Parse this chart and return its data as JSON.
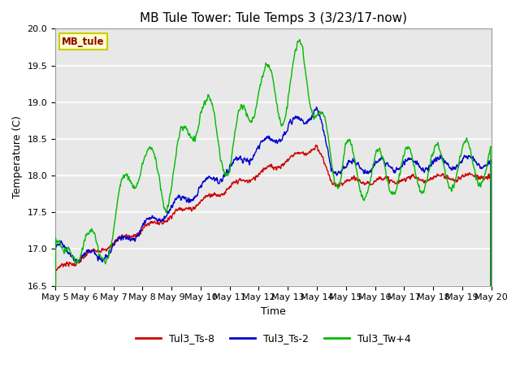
{
  "title": "MB Tule Tower: Tule Temps 3 (3/23/17-now)",
  "xlabel": "Time",
  "ylabel": "Temperature (C)",
  "ylim": [
    16.5,
    20.0
  ],
  "x_tick_labels": [
    "May 5",
    "May 6",
    "May 7",
    "May 8",
    "May 9",
    "May 10",
    "May 11",
    "May 12",
    "May 13",
    "May 14",
    "May 15",
    "May 16",
    "May 17",
    "May 18",
    "May 19",
    "May 20"
  ],
  "legend_labels": [
    "Tul3_Ts-8",
    "Tul3_Ts-2",
    "Tul3_Tw+4"
  ],
  "legend_colors": [
    "#cc0000",
    "#0000cc",
    "#00bb00"
  ],
  "station_label": "MB_tule",
  "line_width": 1.0
}
